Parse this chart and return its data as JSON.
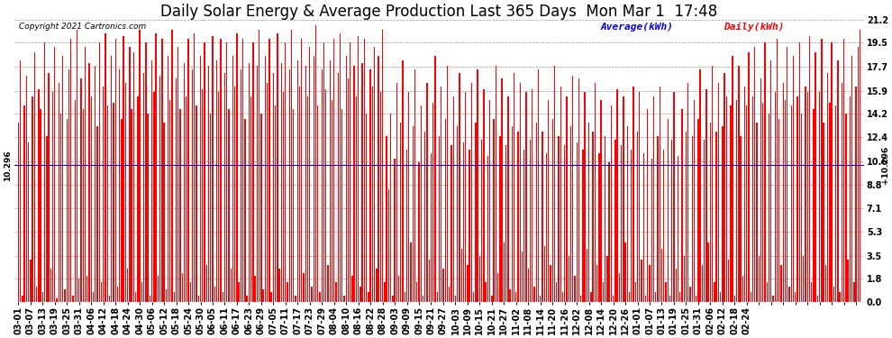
{
  "title": "Daily Solar Energy & Average Production Last 365 Days  Mon Mar 1  17:48",
  "copyright": "Copyright 2021 Cartronics.com",
  "average_label": "Average(kWh)",
  "daily_label": "Daily(kWh)",
  "average_value": 10.296,
  "average_label_text": "10.296",
  "bar_color": "#ff0000",
  "avg_line_color": "#0000ff",
  "avg_text_color": "#000000",
  "legend_avg_color": "#0000ff",
  "legend_daily_color": "#ff0000",
  "background_color": "#ffffff",
  "yticks": [
    0.0,
    1.8,
    3.5,
    5.3,
    7.1,
    8.8,
    10.6,
    12.4,
    14.2,
    15.9,
    17.7,
    19.5,
    21.2
  ],
  "ylim": [
    0.0,
    21.2
  ],
  "grid_color": "#999999",
  "title_fontsize": 12,
  "tick_fontsize": 7,
  "xtick_labels": [
    "03-01",
    "03-07",
    "03-13",
    "03-19",
    "03-25",
    "03-31",
    "04-06",
    "04-12",
    "04-18",
    "04-24",
    "04-30",
    "05-06",
    "05-12",
    "05-18",
    "05-24",
    "05-30",
    "06-05",
    "06-11",
    "06-17",
    "06-23",
    "06-29",
    "07-05",
    "07-11",
    "07-17",
    "07-23",
    "07-29",
    "08-04",
    "08-10",
    "08-16",
    "08-22",
    "08-28",
    "09-03",
    "09-09",
    "09-15",
    "09-21",
    "09-27",
    "10-03",
    "10-09",
    "10-15",
    "10-21",
    "10-27",
    "11-02",
    "11-08",
    "11-14",
    "11-20",
    "11-26",
    "12-02",
    "12-08",
    "12-14",
    "12-20",
    "12-26",
    "01-01",
    "01-07",
    "01-13",
    "01-19",
    "01-25",
    "01-31",
    "02-06",
    "02-12",
    "02-18",
    "02-24"
  ],
  "daily_values": [
    13.5,
    18.2,
    0.5,
    14.8,
    17.0,
    12.0,
    3.2,
    15.5,
    18.8,
    1.2,
    16.0,
    14.5,
    0.8,
    19.5,
    12.5,
    17.2,
    2.5,
    15.8,
    19.2,
    0.3,
    16.5,
    14.2,
    18.5,
    1.0,
    13.8,
    17.5,
    19.8,
    0.5,
    15.2,
    20.5,
    1.8,
    16.8,
    14.5,
    19.2,
    2.0,
    18.0,
    15.5,
    0.8,
    17.8,
    13.2,
    19.5,
    1.5,
    16.2,
    20.2,
    14.8,
    0.5,
    18.5,
    15.0,
    19.8,
    1.2,
    17.5,
    13.8,
    20.0,
    16.5,
    2.5,
    19.2,
    14.5,
    18.8,
    0.8,
    15.5,
    20.5,
    1.5,
    17.2,
    19.5,
    14.2,
    0.5,
    18.2,
    15.8,
    20.2,
    2.0,
    17.0,
    19.8,
    13.5,
    1.0,
    18.5,
    15.2,
    20.5,
    0.8,
    16.8,
    19.2,
    14.5,
    2.2,
    18.0,
    15.5,
    19.8,
    1.5,
    17.5,
    20.2,
    14.8,
    0.5,
    18.5,
    16.0,
    19.5,
    2.8,
    17.8,
    14.2,
    20.0,
    1.2,
    18.2,
    15.8,
    19.8,
    0.8,
    17.2,
    19.5,
    14.5,
    2.5,
    18.5,
    16.2,
    20.2,
    1.5,
    17.5,
    19.8,
    13.8,
    0.5,
    18.0,
    15.5,
    19.5,
    2.0,
    17.8,
    20.5,
    14.2,
    1.0,
    18.5,
    16.5,
    19.8,
    0.8,
    17.2,
    14.8,
    20.2,
    2.5,
    18.0,
    15.8,
    19.5,
    1.5,
    17.5,
    20.5,
    14.5,
    0.5,
    18.2,
    16.2,
    19.8,
    2.2,
    17.8,
    15.5,
    19.2,
    1.2,
    18.5,
    20.8,
    14.8,
    0.8,
    17.5,
    19.5,
    16.0,
    2.8,
    18.2,
    15.2,
    19.8,
    1.5,
    17.2,
    20.2,
    14.5,
    0.5,
    18.5,
    16.8,
    19.5,
    2.0,
    17.8,
    15.5,
    20.0,
    1.2,
    18.0,
    19.8,
    14.2,
    0.8,
    17.5,
    16.2,
    19.2,
    2.5,
    18.5,
    15.8,
    20.5,
    1.5,
    12.5,
    8.5,
    14.2,
    0.5,
    10.8,
    16.5,
    2.0,
    13.5,
    18.2,
    0.8,
    11.5,
    15.8,
    4.5,
    13.2,
    17.5,
    1.5,
    10.5,
    14.8,
    0.5,
    12.8,
    16.5,
    3.2,
    11.2,
    15.0,
    18.5,
    0.8,
    12.5,
    16.2,
    2.5,
    13.8,
    17.8,
    1.2,
    11.8,
    15.5,
    0.5,
    13.2,
    17.2,
    4.0,
    12.0,
    15.8,
    2.8,
    11.5,
    16.5,
    0.8,
    13.5,
    17.5,
    3.5,
    12.2,
    16.0,
    1.5,
    11.0,
    15.2,
    0.5,
    13.8,
    17.8,
    2.2,
    12.5,
    16.8,
    4.5,
    11.8,
    15.5,
    1.0,
    13.2,
    17.2,
    0.8,
    12.8,
    16.5,
    3.8,
    11.5,
    15.8,
    2.5,
    12.2,
    16.0,
    1.2,
    13.5,
    17.5,
    0.5,
    12.8,
    4.2,
    11.2,
    15.2,
    2.8,
    13.8,
    17.8,
    1.5,
    12.5,
    16.2,
    0.8,
    11.8,
    15.5,
    3.5,
    13.2,
    17.0,
    2.0,
    12.0,
    16.8,
    0.5,
    11.5,
    15.8,
    4.0,
    13.5,
    0.8,
    12.8,
    16.5,
    2.8,
    11.2,
    15.2,
    1.5,
    12.5,
    3.5,
    10.5,
    14.8,
    0.5,
    12.2,
    16.0,
    2.2,
    11.8,
    15.5,
    4.5,
    13.2,
    0.8,
    11.5,
    16.2,
    1.5,
    12.8,
    15.8,
    3.2,
    11.2,
    0.5,
    14.5,
    2.8,
    10.8,
    15.5,
    0.8,
    12.5,
    16.2,
    4.0,
    11.5,
    1.5,
    13.8,
    0.5,
    12.2,
    15.8,
    2.5,
    11.0,
    0.8,
    14.5,
    3.5,
    12.8,
    16.5,
    1.2,
    12.5,
    15.2,
    0.5,
    13.8,
    17.5,
    2.8,
    12.2,
    16.0,
    4.5,
    13.5,
    17.8,
    1.5,
    12.8,
    16.5,
    0.8,
    13.2,
    17.2,
    15.5,
    3.2,
    14.8,
    18.5,
    0.5,
    15.2,
    17.8,
    12.5,
    2.0,
    16.2,
    14.8,
    18.8,
    0.8,
    15.5,
    19.2,
    13.5,
    3.5,
    16.8,
    15.0,
    19.5,
    1.5,
    14.2,
    18.2,
    0.5,
    15.8,
    19.8,
    13.8,
    2.8,
    16.5,
    15.2,
    19.2,
    1.2,
    14.8,
    18.5,
    0.8,
    15.5,
    19.5,
    14.2,
    3.5,
    16.2,
    15.8,
    20.0,
    1.5,
    14.5,
    18.8,
    0.5,
    15.8,
    19.8,
    13.5,
    2.8,
    17.2,
    15.0,
    19.5,
    1.2,
    14.8,
    18.2,
    0.8,
    16.5,
    19.8,
    14.2,
    3.2,
    15.5,
    18.5,
    1.5,
    16.2,
    19.2,
    20.5
  ]
}
